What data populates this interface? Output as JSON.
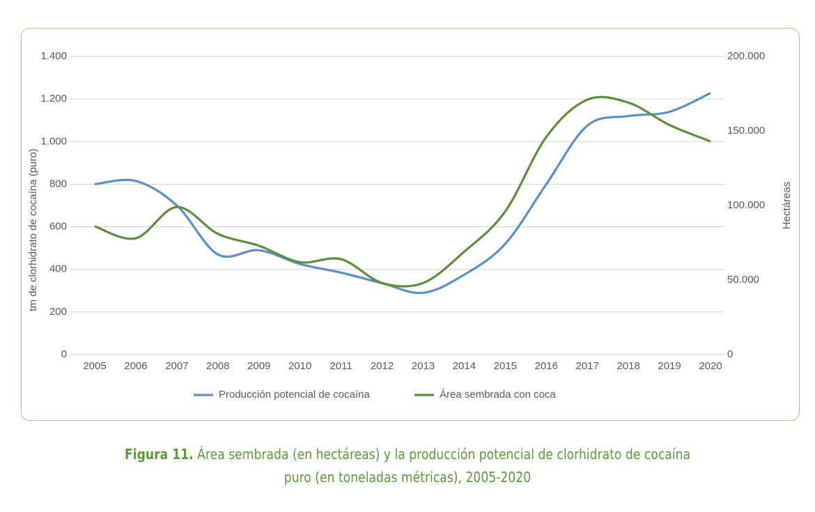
{
  "chart_data": {
    "type": "line",
    "y_label": "tm de clorhidrato de cocaína (puro)",
    "y2_label": "Hectáreas",
    "x": [
      2005,
      2006,
      2007,
      2008,
      2009,
      2010,
      2011,
      2012,
      2013,
      2014,
      2015,
      2016,
      2017,
      2018,
      2019,
      2020
    ],
    "xlim": [
      2005,
      2020
    ],
    "xticks": [
      2005,
      2006,
      2007,
      2008,
      2009,
      2010,
      2011,
      2012,
      2013,
      2014,
      2015,
      2016,
      2017,
      2018,
      2019,
      2020
    ],
    "ylim": [
      0,
      1400
    ],
    "yticks": [
      0,
      200,
      400,
      600,
      800,
      {
        "value": 1000,
        "label": "1.000"
      },
      {
        "value": 1200,
        "label": "1.200"
      },
      {
        "value": 1400,
        "label": "1.400"
      }
    ],
    "y2lim": [
      0,
      200000
    ],
    "y2ticks": [
      0,
      {
        "value": 50000,
        "label": "50.000"
      },
      {
        "value": 100000,
        "label": "100.000"
      },
      {
        "value": 150000,
        "label": "150.000"
      },
      {
        "value": 200000,
        "label": "200.000"
      }
    ],
    "grid": true,
    "legend": "bottom",
    "series": [
      {
        "name": "Producción potencial de cocaína",
        "color": "#5b8fc7",
        "values": [
          800,
          815,
          700,
          470,
          490,
          425,
          385,
          335,
          290,
          375,
          520,
          800,
          1075,
          1120,
          1140,
          1228
        ]
      },
      {
        "name": "Área sembrada con coca",
        "color": "#5e8d3b",
        "axis": "y2",
        "values": [
          86000,
          78000,
          99000,
          81000,
          73000,
          62000,
          64000,
          48000,
          48000,
          69000,
          96000,
          146000,
          171000,
          169000,
          154000,
          143000
        ]
      }
    ]
  },
  "caption_label": "Figura 11.",
  "caption": "Área sembrada (en hectáreas) y la producción potencial de clorhidrato de cocaína puro (en toneladas métricas), 2005-2020"
}
